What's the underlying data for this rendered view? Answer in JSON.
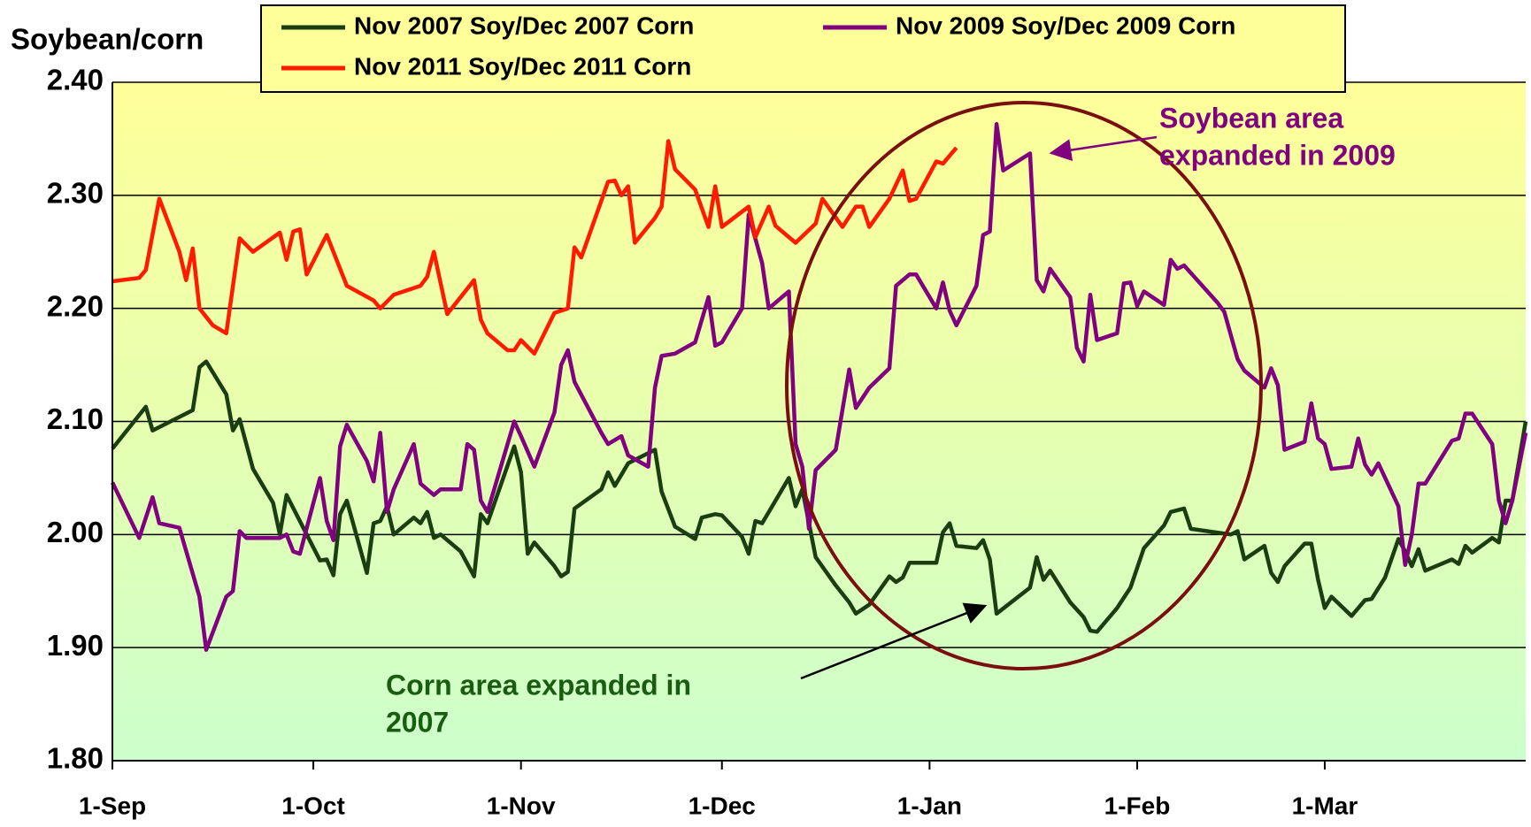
{
  "chart_data": {
    "type": "line",
    "y_label": "Soybean/corn",
    "xlim": [
      0,
      211
    ],
    "xticks": [
      {
        "value": 0,
        "label": "1-Sep"
      },
      {
        "value": 30,
        "label": "1-Oct"
      },
      {
        "value": 61,
        "label": "1-Nov"
      },
      {
        "value": 91,
        "label": "1-Dec"
      },
      {
        "value": 122,
        "label": "1-Jan"
      },
      {
        "value": 153,
        "label": "1-Feb"
      },
      {
        "value": 181,
        "label": "1-Mar"
      }
    ],
    "ylim": [
      1.8,
      2.4
    ],
    "yticks": [
      {
        "value": 1.8,
        "label": "1.80"
      },
      {
        "value": 1.9,
        "label": "1.90"
      },
      {
        "value": 2.0,
        "label": "2.00"
      },
      {
        "value": 2.1,
        "label": "2.10"
      },
      {
        "value": 2.2,
        "label": "2.20"
      },
      {
        "value": 2.3,
        "label": "2.30"
      },
      {
        "value": 2.4,
        "label": "2.40"
      }
    ],
    "grid": true,
    "legend": "top",
    "series": [
      {
        "name": "Nov 2007 Soy/Dec 2007 Corn",
        "color": "#1a3d12",
        "x": [
          0,
          5,
          6,
          12,
          13,
          14,
          17,
          18,
          19,
          21,
          24,
          25,
          26,
          31,
          32,
          33,
          34,
          35,
          38,
          39,
          40,
          41,
          42,
          45,
          46,
          47,
          48,
          49,
          52,
          54,
          55,
          56,
          60,
          61,
          62,
          63,
          66,
          67,
          68,
          69,
          73,
          74,
          75,
          77,
          81,
          82,
          84,
          87,
          88,
          90,
          91,
          94,
          95,
          96,
          97,
          101,
          102,
          103,
          105,
          108,
          110,
          111,
          113,
          116,
          117,
          118,
          119,
          123,
          124,
          125,
          126,
          129,
          130,
          131,
          132,
          137,
          138,
          139,
          140,
          143,
          145,
          146,
          147,
          150,
          152,
          154,
          157,
          158,
          160,
          161,
          167,
          168,
          169,
          172,
          173,
          174,
          175,
          178,
          179,
          180,
          181,
          182,
          185,
          187,
          188,
          190,
          192,
          193,
          194,
          195,
          196,
          200,
          201,
          202,
          203,
          206,
          207,
          208,
          209,
          211
        ],
        "values": [
          2.076,
          2.113,
          2.092,
          2.11,
          2.148,
          2.153,
          2.124,
          2.092,
          2.102,
          2.058,
          2.028,
          2.0,
          2.035,
          1.977,
          1.978,
          1.964,
          2.018,
          2.03,
          1.966,
          2.01,
          2.012,
          2.025,
          2.0,
          2.015,
          2.01,
          2.02,
          1.997,
          2.0,
          1.985,
          1.963,
          2.018,
          2.01,
          2.078,
          2.055,
          1.983,
          1.993,
          1.972,
          1.963,
          1.967,
          2.023,
          2.04,
          2.055,
          2.043,
          2.063,
          2.075,
          2.038,
          2.007,
          1.996,
          2.015,
          2.018,
          2.017,
          1.998,
          1.983,
          2.012,
          2.01,
          2.05,
          2.025,
          2.04,
          1.98,
          1.955,
          1.94,
          1.93,
          1.938,
          1.963,
          1.958,
          1.962,
          1.975,
          1.975,
          2.002,
          2.01,
          1.99,
          1.988,
          1.995,
          1.978,
          1.93,
          1.953,
          1.98,
          1.96,
          1.968,
          1.94,
          1.927,
          1.915,
          1.914,
          1.935,
          1.953,
          1.988,
          2.008,
          2.02,
          2.023,
          2.005,
          2.0,
          2.003,
          1.978,
          1.99,
          1.966,
          1.958,
          1.972,
          1.992,
          1.992,
          1.96,
          1.935,
          1.945,
          1.928,
          1.942,
          1.943,
          1.962,
          1.996,
          1.985,
          1.972,
          1.987,
          1.968,
          1.978,
          1.974,
          1.99,
          1.984,
          1.997,
          1.993,
          2.03,
          2.03,
          2.1
        ]
      },
      {
        "name": "Nov 2009 Soy/Dec 2009 Corn",
        "color": "#800080",
        "x": [
          0,
          4,
          6,
          7,
          10,
          13,
          14,
          17,
          18,
          19,
          20,
          25,
          26,
          27,
          28,
          31,
          32,
          33,
          34,
          35,
          38,
          39,
          40,
          41,
          42,
          45,
          46,
          47,
          48,
          49,
          52,
          53,
          54,
          55,
          56,
          60,
          61,
          63,
          66,
          67,
          68,
          69,
          73,
          74,
          76,
          77,
          80,
          81,
          82,
          84,
          87,
          89,
          90,
          91,
          94,
          95,
          97,
          98,
          101,
          102,
          103,
          104,
          105,
          108,
          110,
          111,
          113,
          116,
          117,
          119,
          120,
          123,
          124,
          125,
          126,
          129,
          130,
          131,
          132,
          133,
          137,
          138,
          139,
          140,
          143,
          144,
          145,
          146,
          147,
          150,
          151,
          152,
          153,
          154,
          157,
          158,
          159,
          160,
          165,
          166,
          168,
          169,
          172,
          173,
          174,
          175,
          178,
          179,
          180,
          181,
          182,
          185,
          186,
          187,
          188,
          189,
          192,
          193,
          194,
          195,
          196,
          200,
          201,
          202,
          203,
          206,
          207,
          208,
          209,
          211
        ],
        "values": [
          2.046,
          1.997,
          2.033,
          2.01,
          2.006,
          1.945,
          1.898,
          1.945,
          1.95,
          2.003,
          1.997,
          1.997,
          2.0,
          1.985,
          1.983,
          2.05,
          2.012,
          1.995,
          2.078,
          2.097,
          2.065,
          2.047,
          2.09,
          2.02,
          2.04,
          2.08,
          2.045,
          2.04,
          2.035,
          2.04,
          2.04,
          2.08,
          2.075,
          2.03,
          2.02,
          2.1,
          2.087,
          2.06,
          2.108,
          2.15,
          2.163,
          2.135,
          2.09,
          2.08,
          2.087,
          2.07,
          2.06,
          2.13,
          2.158,
          2.16,
          2.17,
          2.21,
          2.167,
          2.17,
          2.2,
          2.283,
          2.24,
          2.2,
          2.215,
          2.08,
          2.06,
          2.005,
          2.057,
          2.075,
          2.146,
          2.112,
          2.13,
          2.147,
          2.22,
          2.23,
          2.23,
          2.2,
          2.223,
          2.198,
          2.185,
          2.22,
          2.265,
          2.268,
          2.363,
          2.322,
          2.337,
          2.225,
          2.215,
          2.235,
          2.21,
          2.165,
          2.153,
          2.212,
          2.172,
          2.178,
          2.222,
          2.223,
          2.202,
          2.215,
          2.203,
          2.243,
          2.235,
          2.238,
          2.205,
          2.197,
          2.155,
          2.145,
          2.13,
          2.147,
          2.132,
          2.075,
          2.082,
          2.116,
          2.085,
          2.08,
          2.058,
          2.06,
          2.085,
          2.062,
          2.053,
          2.063,
          2.025,
          1.973,
          2.0,
          2.045,
          2.045,
          2.083,
          2.085,
          2.107,
          2.107,
          2.08,
          2.03,
          2.01,
          2.03,
          2.09
        ]
      },
      {
        "name": "Nov 2011 Soy/Dec 2011 Corn",
        "color": "#ff1a00",
        "x": [
          0,
          4,
          5,
          7,
          10,
          11,
          12,
          13,
          15,
          17,
          19,
          21,
          25,
          26,
          27,
          28,
          29,
          32,
          35,
          39,
          40,
          42,
          46,
          47,
          48,
          50,
          54,
          55,
          56,
          59,
          60,
          61,
          63,
          66,
          68,
          69,
          70,
          74,
          75,
          76,
          77,
          78,
          81,
          82,
          83,
          84,
          87,
          89,
          90,
          91,
          95,
          96,
          98,
          99,
          102,
          105,
          106,
          109,
          111,
          112,
          113,
          116,
          118,
          119,
          120,
          123,
          124,
          126
        ],
        "values": [
          2.224,
          2.227,
          2.234,
          2.297,
          2.25,
          2.225,
          2.253,
          2.2,
          2.185,
          2.178,
          2.262,
          2.25,
          2.267,
          2.243,
          2.268,
          2.27,
          2.23,
          2.265,
          2.22,
          2.207,
          2.2,
          2.212,
          2.22,
          2.228,
          2.25,
          2.195,
          2.225,
          2.19,
          2.178,
          2.163,
          2.163,
          2.172,
          2.16,
          2.196,
          2.2,
          2.254,
          2.245,
          2.312,
          2.313,
          2.3,
          2.308,
          2.258,
          2.28,
          2.29,
          2.348,
          2.323,
          2.305,
          2.272,
          2.308,
          2.272,
          2.29,
          2.263,
          2.29,
          2.273,
          2.258,
          2.275,
          2.297,
          2.272,
          2.29,
          2.29,
          2.272,
          2.297,
          2.322,
          2.295,
          2.297,
          2.33,
          2.328,
          2.342
        ]
      }
    ],
    "annotations": [
      {
        "lines": [
          "Soybean area",
          "expanded in 2009"
        ],
        "color": "#800080"
      },
      {
        "lines": [
          "Corn area expanded in",
          "2007"
        ],
        "color": "#1a5c12"
      }
    ]
  }
}
